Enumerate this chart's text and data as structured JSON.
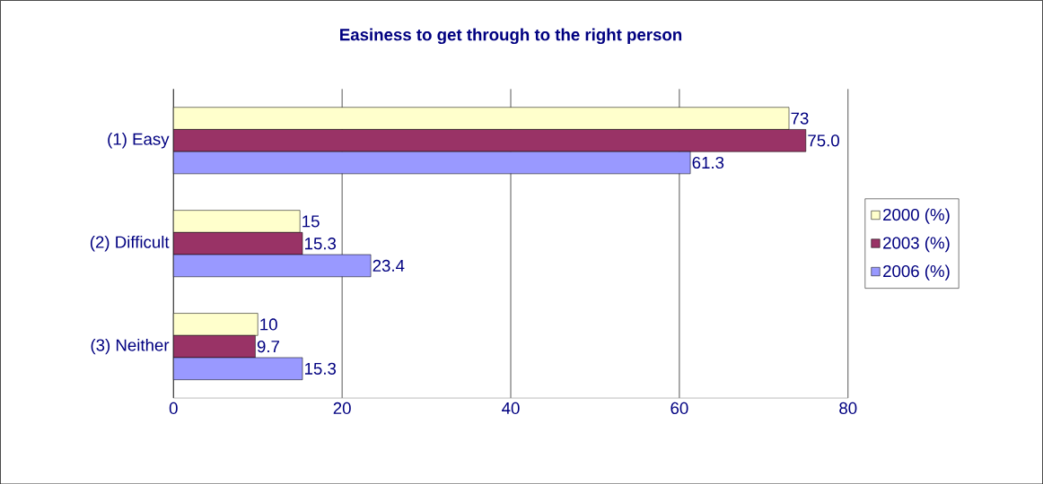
{
  "chart_data": {
    "type": "bar",
    "orientation": "horizontal",
    "title": "Easiness to get through to the right person",
    "categories": [
      "(1) Easy",
      "(2) Difficult",
      "(3) Neither"
    ],
    "series": [
      {
        "name": "2000 (%)",
        "color": "#ffffcc",
        "values": [
          73,
          15,
          10
        ],
        "value_labels": [
          "73",
          "15",
          "10"
        ]
      },
      {
        "name": "2003 (%)",
        "color": "#993366",
        "values": [
          75.0,
          15.3,
          9.7
        ],
        "value_labels": [
          "75.0",
          "15.3",
          "9.7"
        ]
      },
      {
        "name": "2006 (%)",
        "color": "#9999ff",
        "values": [
          61.3,
          23.4,
          15.3
        ],
        "value_labels": [
          "61.3",
          "23.4",
          "15.3"
        ]
      }
    ],
    "xlim": [
      0,
      80
    ],
    "xticks": [
      0,
      20,
      40,
      60,
      80
    ],
    "grid": "x",
    "legend": "right"
  }
}
